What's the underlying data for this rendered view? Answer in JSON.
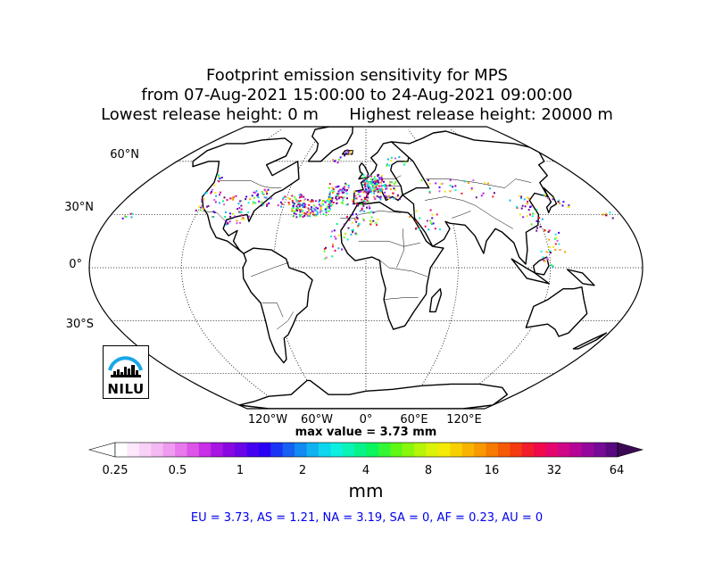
{
  "title": {
    "line1": "Footprint emission sensitivity for MPS",
    "line2": "from 07-Aug-2021 15:00:00 to 24-Aug-2021 09:00:00",
    "line3": "Lowest release height: 0 m      Highest release height: 20000 m"
  },
  "map": {
    "projection": "Robinson",
    "graticule_lat_labels": [
      "60°N",
      "30°N",
      "0°",
      "30°S"
    ],
    "graticule_lon_labels": [
      "120°W",
      "60°W",
      "0°",
      "60°E",
      "120°E"
    ],
    "logo_text": "NILU"
  },
  "max_value": "max value = 3.73 mm",
  "colorbar": {
    "ticks": [
      "0.25",
      "0.5",
      "1",
      "2",
      "4",
      "8",
      "16",
      "32",
      "64"
    ],
    "unit": "mm",
    "colors": [
      "#ffffff",
      "#fde8fb",
      "#f8d2f6",
      "#f4b8f2",
      "#ef9bef",
      "#e779ec",
      "#dc55e8",
      "#c82fe6",
      "#a716e3",
      "#8708e0",
      "#6a05e8",
      "#4500f0",
      "#2a00f5",
      "#1a34f4",
      "#1660f3",
      "#138af1",
      "#10b2ef",
      "#0dd6ee",
      "#0bf0e0",
      "#09f3b6",
      "#07f38a",
      "#0af55e",
      "#33f634",
      "#5ef716",
      "#89f70c",
      "#b6f50a",
      "#dcf308",
      "#f4ea06",
      "#f7d004",
      "#f9b403",
      "#f89802",
      "#f67b02",
      "#f55a06",
      "#f43a10",
      "#f21c2a",
      "#f00a4c",
      "#e4066e",
      "#cf0686",
      "#b40596",
      "#95079c",
      "#760a97",
      "#58097f"
    ]
  },
  "stats": "EU = 3.73,  AS = 1.21,  NA = 3.19,  SA = 0,  AF = 0.23,  AU = 0"
}
